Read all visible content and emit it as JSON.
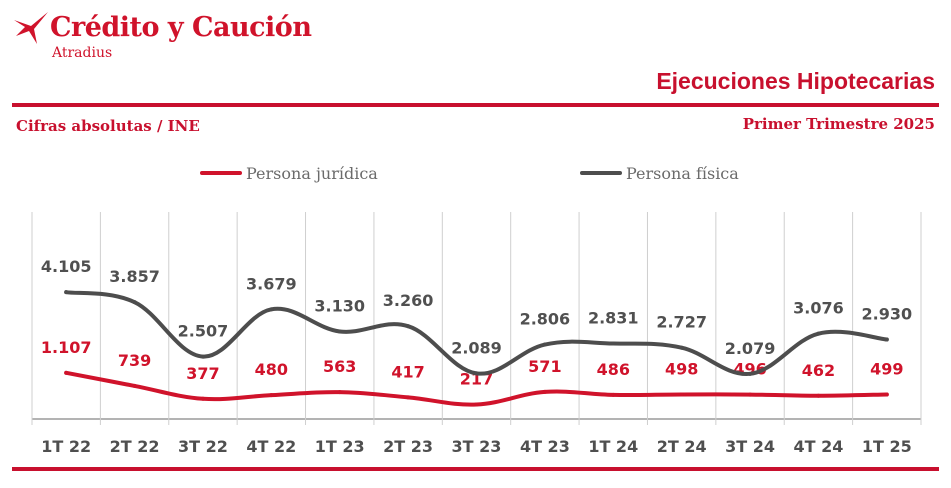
{
  "brand": {
    "name": "Crédito y Caución",
    "subname": "Atradius",
    "logo_icon": "bird-logo-icon",
    "color": "#d0132b"
  },
  "header": {
    "title": "Ejecuciones Hipotecarias",
    "subtitle": "Cifras absolutas / INE",
    "period": "Primer Trimestre  2025"
  },
  "chart_data": {
    "type": "line",
    "categories": [
      "1T 22",
      "2T 22",
      "3T 22",
      "4T 22",
      "1T 23",
      "2T 23",
      "3T 23",
      "4T 23",
      "1T 24",
      "2T 24",
      "3T 24",
      "4T 24",
      "1T 25"
    ],
    "series": [
      {
        "name": "Persona jurídica",
        "color": "#d0132b",
        "values": [
          1107,
          739,
          377,
          480,
          563,
          417,
          217,
          571,
          486,
          498,
          496,
          462,
          499
        ],
        "labels": [
          "1.107",
          "739",
          "377",
          "480",
          "563",
          "417",
          "217",
          "571",
          "486",
          "498",
          "496",
          "462",
          "499"
        ]
      },
      {
        "name": "Persona física",
        "color": "#4d4d4d",
        "values": [
          4105,
          3857,
          2507,
          3679,
          3130,
          3260,
          2089,
          2806,
          2831,
          2727,
          2079,
          3076,
          2930
        ],
        "labels": [
          "4.105",
          "3.857",
          "2.507",
          "3.679",
          "3.130",
          "3.260",
          "2.089",
          "2.806",
          "2.831",
          "2.727",
          "2.079",
          "3.076",
          "2.930"
        ]
      }
    ],
    "legend_position": "top",
    "grid": "vertical category separators"
  }
}
